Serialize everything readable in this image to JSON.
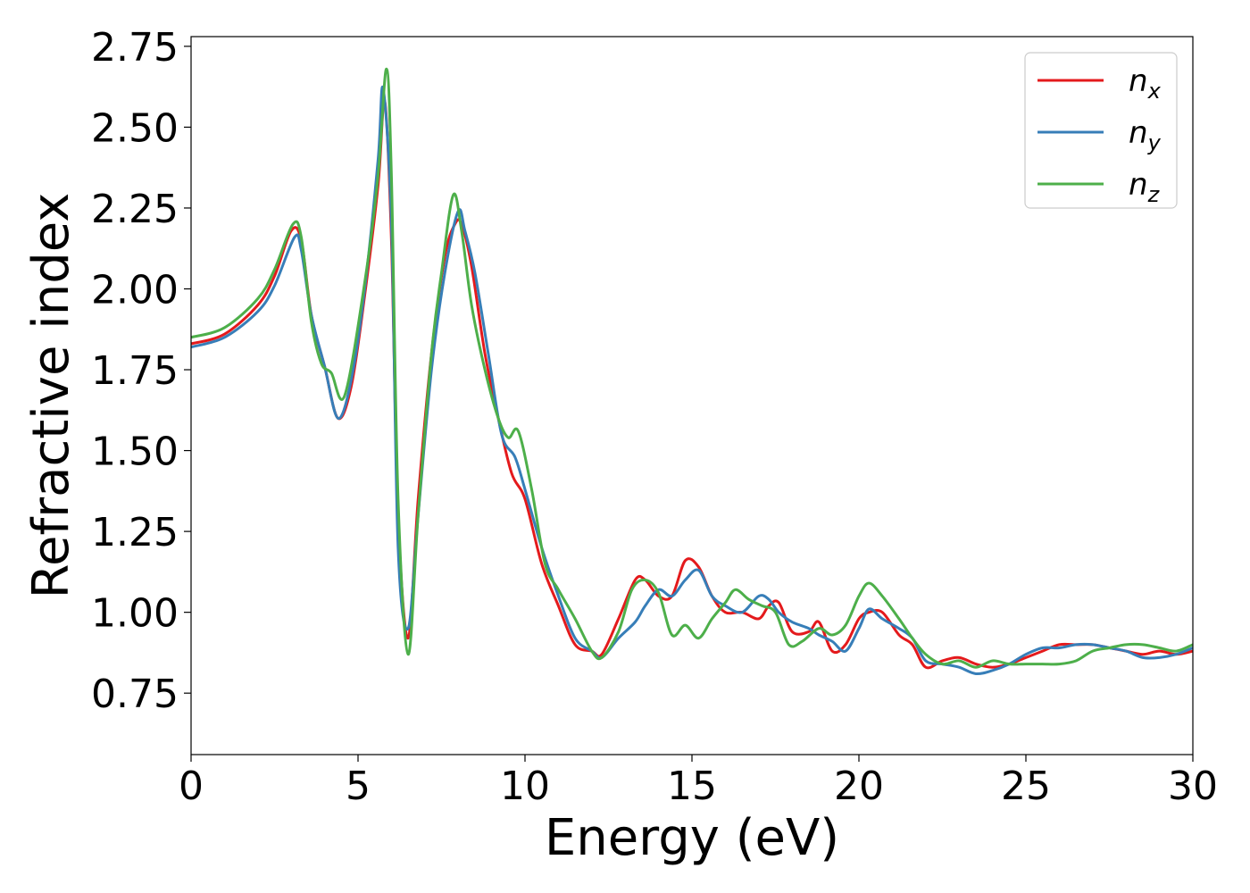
{
  "chart_data": {
    "type": "line",
    "xlabel": "Energy (eV)",
    "ylabel": "Refractive index",
    "xlim": [
      0,
      30
    ],
    "ylim": [
      0.56,
      2.78
    ],
    "xticks": [
      0,
      5,
      10,
      15,
      20,
      25,
      30
    ],
    "xtick_labels": [
      "0",
      "5",
      "10",
      "15",
      "20",
      "25",
      "30"
    ],
    "yticks": [
      0.75,
      1.0,
      1.25,
      1.5,
      1.75,
      2.0,
      2.25,
      2.5,
      2.75
    ],
    "ytick_labels": [
      "0.75",
      "1.00",
      "1.25",
      "1.50",
      "1.75",
      "2.00",
      "2.25",
      "2.50",
      "2.75"
    ],
    "grid": false,
    "legend_position": "top-right",
    "series": [
      {
        "name": "n",
        "subscript": "x",
        "color": "#e41a1c",
        "x": [
          0,
          1,
          2,
          2.5,
          3.0,
          3.3,
          3.6,
          4.0,
          4.4,
          4.8,
          5.2,
          5.6,
          5.8,
          6.0,
          6.2,
          6.5,
          6.8,
          7.2,
          7.6,
          7.9,
          8.1,
          8.4,
          8.8,
          9.2,
          9.6,
          10.0,
          10.5,
          11.0,
          11.5,
          12.0,
          12.3,
          12.8,
          13.3,
          13.6,
          14.0,
          14.4,
          14.8,
          15.2,
          15.6,
          16.0,
          16.5,
          17.0,
          17.3,
          17.6,
          18.0,
          18.5,
          18.8,
          19.2,
          19.6,
          20.0,
          20.3,
          20.7,
          21.2,
          21.6,
          22.0,
          22.5,
          23.0,
          23.5,
          24.0,
          24.5,
          25.0,
          25.5,
          26.0,
          26.5,
          27.0,
          27.5,
          28.0,
          28.5,
          29.0,
          29.5,
          30.0
        ],
        "y": [
          1.83,
          1.86,
          1.95,
          2.04,
          2.18,
          2.15,
          1.92,
          1.76,
          1.6,
          1.7,
          1.98,
          2.32,
          2.58,
          2.15,
          1.3,
          0.92,
          1.35,
          1.8,
          2.1,
          2.2,
          2.2,
          2.07,
          1.8,
          1.6,
          1.43,
          1.35,
          1.15,
          1.02,
          0.9,
          0.88,
          0.87,
          0.98,
          1.1,
          1.1,
          1.05,
          1.05,
          1.16,
          1.14,
          1.05,
          1.0,
          1.0,
          0.98,
          1.02,
          1.03,
          0.94,
          0.94,
          0.97,
          0.88,
          0.9,
          0.98,
          1.0,
          1.0,
          0.93,
          0.9,
          0.83,
          0.85,
          0.86,
          0.84,
          0.83,
          0.84,
          0.86,
          0.88,
          0.9,
          0.9,
          0.9,
          0.89,
          0.88,
          0.87,
          0.88,
          0.87,
          0.88
        ]
      },
      {
        "name": "n",
        "subscript": "y",
        "color": "#377eb8",
        "x": [
          0,
          1,
          2,
          2.5,
          3.1,
          3.3,
          3.6,
          4.0,
          4.4,
          4.8,
          5.2,
          5.6,
          5.75,
          6.0,
          6.2,
          6.5,
          6.8,
          7.2,
          7.6,
          8.0,
          8.2,
          8.5,
          8.9,
          9.3,
          9.7,
          10.0,
          10.5,
          11.0,
          11.5,
          12.0,
          12.3,
          12.8,
          13.3,
          13.6,
          14.0,
          14.4,
          14.8,
          15.2,
          15.6,
          16.0,
          16.5,
          17.0,
          17.3,
          17.6,
          18.0,
          18.5,
          18.8,
          19.2,
          19.6,
          20.0,
          20.3,
          20.7,
          21.2,
          21.6,
          22.0,
          22.5,
          23.0,
          23.5,
          24.0,
          24.5,
          25.0,
          25.5,
          26.0,
          26.5,
          27.0,
          27.5,
          28.0,
          28.5,
          29.0,
          29.5,
          30.0
        ],
        "y": [
          1.82,
          1.85,
          1.93,
          2.01,
          2.16,
          2.12,
          1.92,
          1.76,
          1.6,
          1.72,
          2.0,
          2.4,
          2.62,
          2.2,
          1.2,
          0.95,
          1.3,
          1.75,
          2.05,
          2.24,
          2.18,
          2.05,
          1.8,
          1.55,
          1.48,
          1.38,
          1.2,
          1.05,
          0.92,
          0.88,
          0.86,
          0.92,
          0.97,
          1.02,
          1.07,
          1.05,
          1.1,
          1.13,
          1.05,
          1.02,
          1.0,
          1.05,
          1.04,
          1.0,
          0.97,
          0.95,
          0.93,
          0.91,
          0.88,
          0.95,
          1.01,
          0.98,
          0.95,
          0.92,
          0.85,
          0.84,
          0.83,
          0.81,
          0.82,
          0.84,
          0.87,
          0.89,
          0.89,
          0.9,
          0.9,
          0.89,
          0.88,
          0.86,
          0.86,
          0.87,
          0.89
        ]
      },
      {
        "name": "n",
        "subscript": "z",
        "color": "#4daf4a",
        "x": [
          0,
          1,
          2,
          2.5,
          3.05,
          3.3,
          3.6,
          3.9,
          4.2,
          4.6,
          5.2,
          5.6,
          5.85,
          6.0,
          6.2,
          6.5,
          6.8,
          7.2,
          7.5,
          7.85,
          8.1,
          8.4,
          8.8,
          9.2,
          9.5,
          9.8,
          10.2,
          10.6,
          11.0,
          11.5,
          12.0,
          12.3,
          12.8,
          13.2,
          13.6,
          14.0,
          14.4,
          14.8,
          15.2,
          15.6,
          16.0,
          16.3,
          16.7,
          17.1,
          17.5,
          17.9,
          18.3,
          18.8,
          19.2,
          19.6,
          20.0,
          20.3,
          20.7,
          21.2,
          21.6,
          22.0,
          22.5,
          23.0,
          23.5,
          24.0,
          24.5,
          25.0,
          25.5,
          26.0,
          26.5,
          27.0,
          27.5,
          28.0,
          28.5,
          29.0,
          29.5,
          30.0
        ],
        "y": [
          1.85,
          1.88,
          1.97,
          2.06,
          2.2,
          2.16,
          1.9,
          1.77,
          1.74,
          1.67,
          2.02,
          2.35,
          2.68,
          2.35,
          1.35,
          0.87,
          1.3,
          1.8,
          2.05,
          2.29,
          2.18,
          1.95,
          1.75,
          1.6,
          1.54,
          1.56,
          1.38,
          1.15,
          1.07,
          0.98,
          0.88,
          0.86,
          0.94,
          1.07,
          1.1,
          1.06,
          0.93,
          0.96,
          0.92,
          0.98,
          1.03,
          1.07,
          1.04,
          1.02,
          1.0,
          0.9,
          0.91,
          0.95,
          0.93,
          0.96,
          1.05,
          1.09,
          1.05,
          0.98,
          0.92,
          0.87,
          0.84,
          0.85,
          0.83,
          0.85,
          0.84,
          0.84,
          0.84,
          0.84,
          0.85,
          0.88,
          0.89,
          0.9,
          0.9,
          0.89,
          0.88,
          0.9
        ]
      }
    ]
  }
}
